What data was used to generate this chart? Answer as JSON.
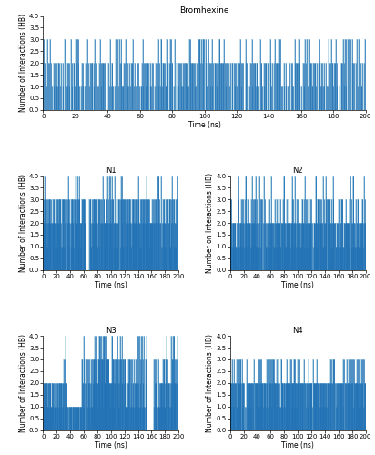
{
  "title_bromhexine": "Bromhexine",
  "title_n1": "N1",
  "title_n2": "N2",
  "title_n3": "N3",
  "title_n4": "N4",
  "xlabel": "Time (ns)",
  "ylabel": "Number of Interactions (HB)",
  "ylabel_n2": "Number on Interactions (HB)",
  "ylim": [
    0,
    4
  ],
  "xlim": [
    0,
    200
  ],
  "yticks": [
    0,
    0.5,
    1,
    1.5,
    2,
    2.5,
    3,
    3.5,
    4
  ],
  "xticks": [
    0,
    20,
    40,
    60,
    80,
    100,
    120,
    140,
    160,
    180,
    200
  ],
  "bar_color_dark": "#2171b5",
  "bar_color_light": "#9ecae1",
  "background_color": "#ffffff",
  "n_points": 500,
  "time_max": 200
}
